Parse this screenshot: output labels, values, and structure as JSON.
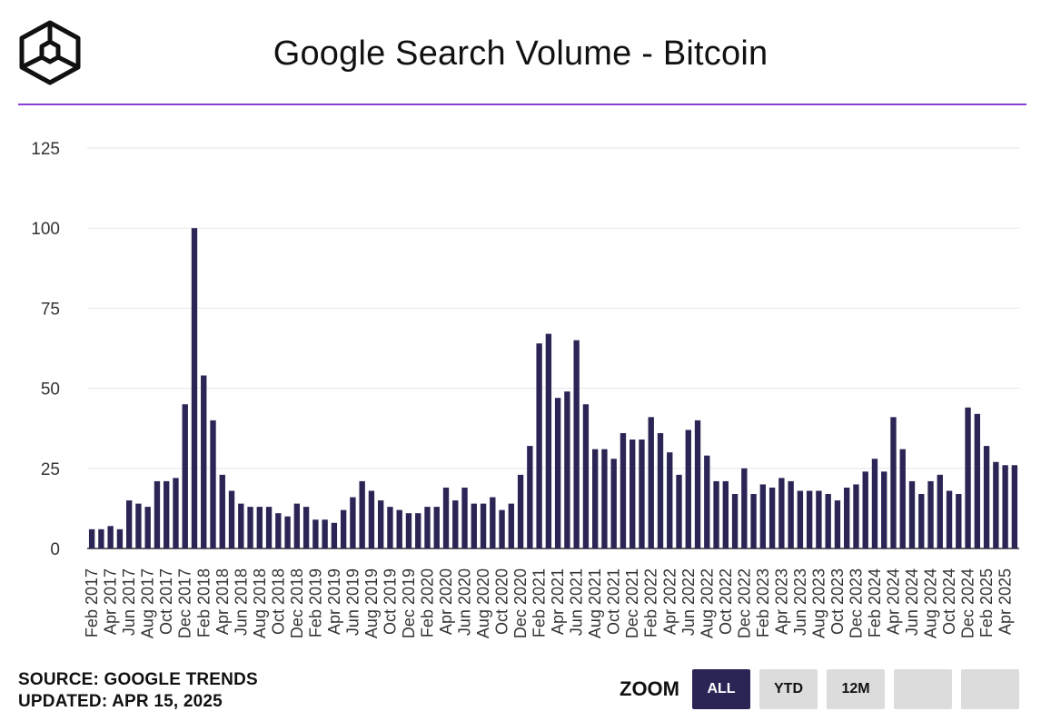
{
  "header": {
    "title": "Google Search Volume - Bitcoin"
  },
  "colors": {
    "bar": "#2a2555",
    "rule": "#8a3ed6",
    "grid": "#e6e6e6",
    "axis": "#333333",
    "zoom_active_bg": "#2a2555",
    "zoom_active_fg": "#ffffff",
    "zoom_bg": "#dcdcdc",
    "zoom_fg": "#111111"
  },
  "footer": {
    "source": "SOURCE: GOOGLE TRENDS",
    "updated": "UPDATED: APR 15, 2025"
  },
  "zoom": {
    "label": "ZOOM",
    "buttons": [
      "ALL",
      "YTD",
      "12M",
      "",
      ""
    ],
    "active": "ALL"
  },
  "logo": {
    "icon": "cube-logo-icon"
  },
  "chart_data": {
    "type": "bar",
    "title": "Google Search Volume - Bitcoin",
    "ylim": [
      0,
      125
    ],
    "yticks": [
      0,
      25,
      50,
      75,
      100,
      125
    ],
    "grid": true,
    "x_tick_labels": [
      "Feb 2017",
      "Apr 2017",
      "Jun 2017",
      "Aug 2017",
      "Oct 2017",
      "Dec 2017",
      "Feb 2018",
      "Apr 2018",
      "Jun 2018",
      "Aug 2018",
      "Oct 2018",
      "Dec 2018",
      "Feb 2019",
      "Apr 2019",
      "Jun 2019",
      "Aug 2019",
      "Oct 2019",
      "Dec 2019",
      "Feb 2020",
      "Apr 2020",
      "Jun 2020",
      "Aug 2020",
      "Oct 2020",
      "Dec 2020",
      "Feb 2021",
      "Apr 2021",
      "Jun 2021",
      "Aug 2021",
      "Oct 2021",
      "Dec 2021",
      "Feb 2022",
      "Apr 2022",
      "Jun 2022",
      "Aug 2022",
      "Oct 2022",
      "Dec 2022",
      "Feb 2023",
      "Apr 2023",
      "Jun 2023",
      "Aug 2023",
      "Oct 2023",
      "Dec 2023",
      "Feb 2024",
      "Apr 2024",
      "Jun 2024",
      "Aug 2024",
      "Oct 2024",
      "Dec 2024",
      "Feb 2025",
      "Apr 2025"
    ],
    "values": [
      6,
      6,
      7,
      6,
      15,
      14,
      13,
      21,
      21,
      22,
      45,
      100,
      54,
      40,
      23,
      18,
      14,
      13,
      13,
      13,
      11,
      10,
      14,
      13,
      9,
      9,
      8,
      12,
      16,
      21,
      18,
      15,
      13,
      12,
      11,
      11,
      13,
      13,
      19,
      15,
      19,
      14,
      14,
      16,
      12,
      14,
      23,
      32,
      64,
      67,
      47,
      49,
      65,
      45,
      31,
      31,
      28,
      36,
      34,
      34,
      41,
      36,
      30,
      23,
      37,
      40,
      29,
      21,
      21,
      17,
      25,
      17,
      20,
      19,
      22,
      21,
      18,
      18,
      18,
      17,
      15,
      19,
      20,
      24,
      28,
      24,
      41,
      31,
      21,
      17,
      21,
      23,
      18,
      17,
      44,
      42,
      32,
      27,
      26,
      26
    ]
  }
}
